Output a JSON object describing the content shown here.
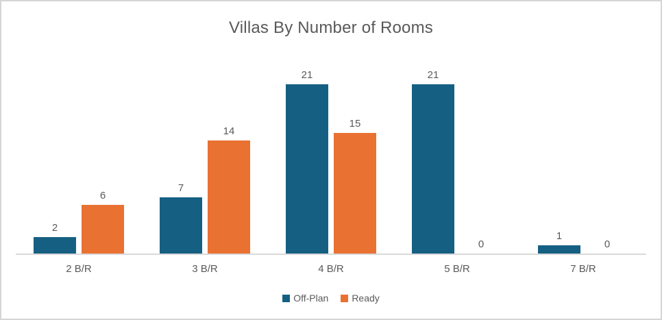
{
  "chart_data": {
    "type": "bar",
    "title": "Villas By Number of Rooms",
    "categories": [
      "2 B/R",
      "3 B/R",
      "4 B/R",
      "5 B/R",
      "7 B/R"
    ],
    "series": [
      {
        "name": "Off-Plan",
        "color": "#156082",
        "values": [
          2,
          7,
          21,
          21,
          1
        ]
      },
      {
        "name": "Ready",
        "color": "#E97132",
        "values": [
          6,
          14,
          15,
          0,
          0
        ]
      }
    ],
    "ylim": [
      0,
      21
    ],
    "data_labels": true,
    "grid": false,
    "legend_position": "bottom",
    "xlabel": "",
    "ylabel": ""
  },
  "colors": {
    "title_text": "#595959",
    "label_text": "#595959",
    "axis_line": "#d9d9d9",
    "frame_border": "#d5d5d5",
    "background": "#ffffff"
  }
}
